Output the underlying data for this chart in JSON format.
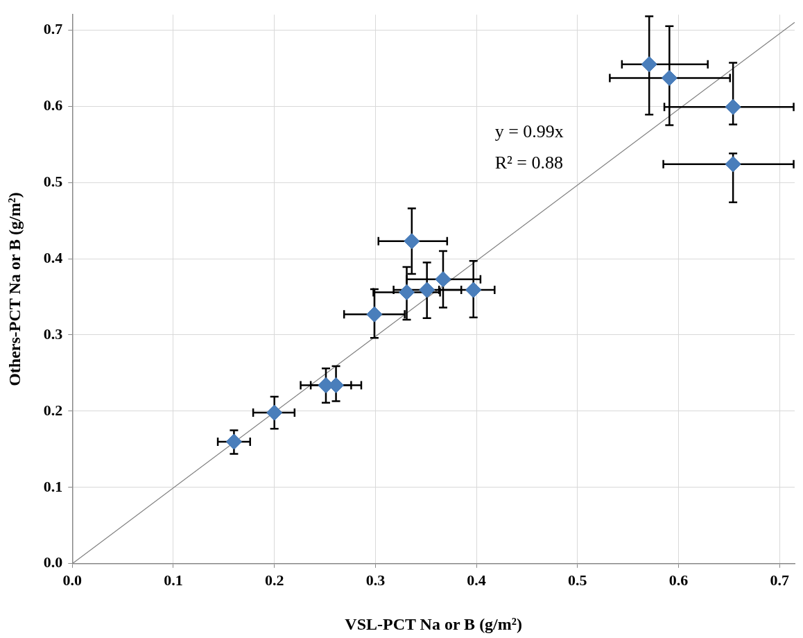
{
  "chart_data": {
    "type": "scatter",
    "xlabel": "VSL-PCT Na or B (g/m²)",
    "ylabel": "Others-PCT Na or B (g/m²)",
    "xlim": [
      0,
      0.715
    ],
    "ylim": [
      0,
      0.72
    ],
    "xticks": [
      {
        "value": 0,
        "label": "0.0"
      },
      0.1,
      0.2,
      0.3,
      0.4,
      0.5,
      0.6,
      0.7
    ],
    "yticks": [
      {
        "value": 0,
        "label": "0.0"
      },
      0.1,
      0.2,
      0.3,
      0.4,
      0.5,
      0.6,
      0.7
    ],
    "grid": true,
    "annotations": [
      "y = 0.99x",
      "R² = 0.88"
    ],
    "series": [
      {
        "color": "#4a7ebb",
        "marker": "diamond",
        "x": [
          0.16,
          0.2,
          0.251,
          0.261,
          0.299,
          0.331,
          0.351,
          0.367,
          0.397,
          0.336,
          0.571,
          0.591,
          0.654,
          0.654
        ],
        "values": [
          0.16,
          0.198,
          0.234,
          0.234,
          0.327,
          0.356,
          0.359,
          0.373,
          0.359,
          0.423,
          0.655,
          0.637,
          0.599,
          0.524
        ],
        "errors": [
          [
            0.144,
            0.175
          ],
          [
            0.177,
            0.219
          ],
          [
            0.211,
            0.256
          ],
          [
            0.213,
            0.259
          ],
          [
            0.296,
            0.36
          ],
          [
            0.32,
            0.389
          ],
          [
            0.322,
            0.395
          ],
          [
            0.336,
            0.41
          ],
          [
            0.323,
            0.397
          ],
          [
            0.38,
            0.466
          ],
          [
            0.589,
            0.718
          ],
          [
            0.575,
            0.705
          ],
          [
            0.576,
            0.657
          ],
          [
            0.474,
            0.538
          ]
        ],
        "xerrors": [
          [
            0.144,
            0.176
          ],
          [
            0.179,
            0.22
          ],
          [
            0.226,
            0.276
          ],
          [
            0.236,
            0.286
          ],
          [
            0.269,
            0.329
          ],
          [
            0.298,
            0.364
          ],
          [
            0.318,
            0.385
          ],
          [
            0.331,
            0.404
          ],
          [
            0.363,
            0.418
          ],
          [
            0.303,
            0.371
          ],
          [
            0.544,
            0.629
          ],
          [
            0.532,
            0.651
          ],
          [
            0.586,
            0.714
          ],
          [
            0.585,
            0.714
          ]
        ]
      },
      {
        "type": "line",
        "color": "#808080",
        "x": [
          0,
          0.715
        ],
        "values": [
          0,
          0.71
        ]
      }
    ]
  }
}
